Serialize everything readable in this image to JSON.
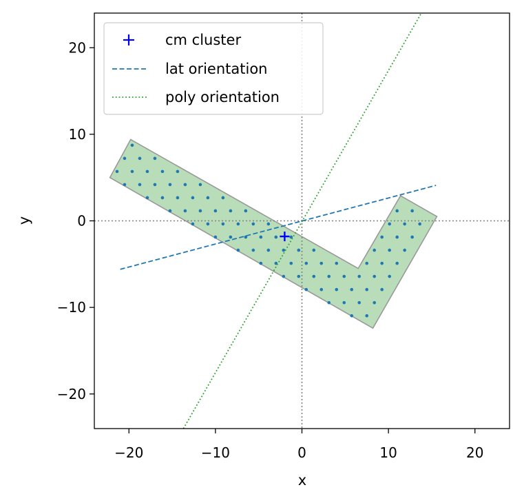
{
  "chart_data": {
    "type": "scatter",
    "title": "",
    "xlabel": "x",
    "ylabel": "y",
    "xlim": [
      -24,
      24
    ],
    "ylim": [
      -24,
      24
    ],
    "xticks": [
      -20,
      -10,
      0,
      10,
      20
    ],
    "yticks": [
      -20,
      -10,
      0,
      10,
      20
    ],
    "xtick_labels": [
      "−20",
      "−10",
      "0",
      "10",
      "20"
    ],
    "ytick_labels": [
      "−20",
      "−10",
      "0",
      "10",
      "20"
    ],
    "grid": false,
    "legend_position": "top-left",
    "reference_lines": {
      "x": 0,
      "y": 0,
      "style": "dotted",
      "color": "#808080"
    },
    "polygon": {
      "vertices": [
        [
          -22.2,
          5.0
        ],
        [
          -19.8,
          9.4
        ],
        [
          6.5,
          -5.5
        ],
        [
          11.4,
          2.9
        ],
        [
          15.6,
          0.5
        ],
        [
          8.2,
          -12.4
        ],
        [
          -22.2,
          5.0
        ]
      ],
      "fill": "#b8ddb8",
      "stroke": "#999999"
    },
    "points_style": {
      "color": "#1f77b4",
      "spacing": 1.75
    },
    "series": [
      {
        "name": "cm cluster",
        "kind": "marker",
        "marker": "+",
        "color": "#0000ff",
        "points": [
          [
            -2.0,
            -1.8
          ]
        ]
      },
      {
        "name": "lat orientation",
        "kind": "line",
        "style": "dashed",
        "color": "#1f77b4",
        "points": [
          [
            -21.0,
            -5.6
          ],
          [
            15.5,
            4.1
          ]
        ]
      },
      {
        "name": "poly orientation",
        "kind": "line",
        "style": "dotted",
        "color": "#2ca02c",
        "points": [
          [
            -13.7,
            -24.0
          ],
          [
            13.8,
            24.0
          ]
        ]
      }
    ]
  }
}
